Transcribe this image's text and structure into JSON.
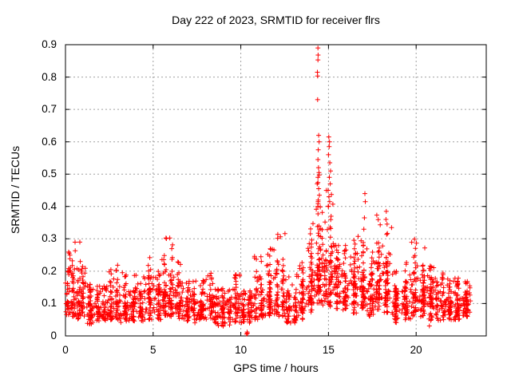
{
  "window": {
    "background": "#ffffff"
  },
  "chart_data": {
    "type": "scatter",
    "title": "Day 222 of 2023, SRMTID for receiver flrs",
    "xlabel": "GPS time / hours",
    "ylabel": "SRMTID / TECUs",
    "xlim": [
      0,
      24
    ],
    "ylim": [
      0,
      0.9
    ],
    "xticks": [
      0,
      5,
      10,
      15,
      20
    ],
    "xtick_labels": [
      "0",
      "5",
      "10",
      "15",
      "20"
    ],
    "yticks": [
      0,
      0.1,
      0.2,
      0.3,
      0.4,
      0.5,
      0.6,
      0.7,
      0.8,
      0.9
    ],
    "ytick_labels": [
      "0",
      "0.1",
      "0.2",
      "0.3",
      "0.4",
      "0.5",
      "0.6",
      "0.7",
      "0.8",
      "0.9"
    ],
    "grid": true,
    "legend": "none",
    "series_name": "SRMTID for receiver flrs",
    "marker": "plus",
    "marker_color": "#ff0000",
    "grid_color": "#a0a0a0",
    "axis_color": "#000000",
    "x_data_range": [
      0.0,
      23.1
    ],
    "seed": 20230222,
    "scatter_bands_format": [
      "x_start_hours",
      "x_end_hours",
      "n_points",
      "y_low_TECU",
      "y_typical_TECU",
      "y_peak_TECU"
    ],
    "scatter_bands": [
      [
        0.0,
        0.3,
        35,
        0.05,
        0.11,
        0.26
      ],
      [
        0.25,
        0.6,
        40,
        0.06,
        0.13,
        0.29
      ],
      [
        0.6,
        0.85,
        30,
        0.05,
        0.1,
        0.22
      ],
      [
        0.8,
        1.15,
        40,
        0.06,
        0.13,
        0.32
      ],
      [
        1.15,
        1.7,
        55,
        0.035,
        0.085,
        0.16
      ],
      [
        1.7,
        2.4,
        70,
        0.045,
        0.08,
        0.155
      ],
      [
        2.4,
        2.75,
        35,
        0.05,
        0.1,
        0.21
      ],
      [
        2.75,
        3.15,
        40,
        0.05,
        0.1,
        0.22
      ],
      [
        3.15,
        3.7,
        50,
        0.04,
        0.09,
        0.2
      ],
      [
        3.7,
        4.5,
        80,
        0.045,
        0.09,
        0.19
      ],
      [
        4.5,
        5.1,
        60,
        0.05,
        0.11,
        0.26
      ],
      [
        5.1,
        5.5,
        40,
        0.05,
        0.1,
        0.2
      ],
      [
        5.5,
        6.2,
        90,
        0.06,
        0.14,
        0.32
      ],
      [
        6.2,
        6.8,
        60,
        0.05,
        0.11,
        0.23
      ],
      [
        6.8,
        7.5,
        70,
        0.04,
        0.09,
        0.17
      ],
      [
        7.5,
        8.1,
        60,
        0.05,
        0.09,
        0.18
      ],
      [
        8.1,
        8.5,
        40,
        0.05,
        0.1,
        0.195
      ],
      [
        8.5,
        9.5,
        95,
        0.03,
        0.08,
        0.15
      ],
      [
        9.5,
        9.95,
        45,
        0.04,
        0.095,
        0.19
      ],
      [
        9.95,
        10.7,
        70,
        0.04,
        0.08,
        0.14
      ],
      [
        10.7,
        11.35,
        65,
        0.05,
        0.11,
        0.25
      ],
      [
        11.35,
        11.95,
        60,
        0.06,
        0.12,
        0.27
      ],
      [
        11.95,
        12.55,
        65,
        0.06,
        0.13,
        0.32
      ],
      [
        12.55,
        13.3,
        70,
        0.04,
        0.095,
        0.19
      ],
      [
        13.3,
        13.75,
        45,
        0.05,
        0.11,
        0.23
      ],
      [
        13.75,
        14.25,
        60,
        0.07,
        0.155,
        0.35
      ],
      [
        14.25,
        14.65,
        70,
        0.1,
        0.2,
        0.5
      ],
      [
        14.65,
        15.3,
        85,
        0.09,
        0.18,
        0.45
      ],
      [
        15.3,
        16.2,
        100,
        0.08,
        0.155,
        0.28
      ],
      [
        16.2,
        16.75,
        60,
        0.07,
        0.14,
        0.33
      ],
      [
        16.75,
        17.2,
        55,
        0.08,
        0.15,
        0.33
      ],
      [
        17.2,
        17.65,
        50,
        0.06,
        0.12,
        0.27
      ],
      [
        17.65,
        18.05,
        55,
        0.08,
        0.16,
        0.385
      ],
      [
        18.05,
        18.6,
        65,
        0.07,
        0.15,
        0.385
      ],
      [
        18.6,
        19.1,
        55,
        0.04,
        0.09,
        0.2
      ],
      [
        19.1,
        19.7,
        55,
        0.05,
        0.11,
        0.25
      ],
      [
        19.7,
        20.15,
        50,
        0.06,
        0.13,
        0.3
      ],
      [
        20.15,
        20.7,
        60,
        0.06,
        0.13,
        0.28
      ],
      [
        20.7,
        21.7,
        110,
        0.03,
        0.1,
        0.22
      ],
      [
        21.7,
        22.6,
        100,
        0.05,
        0.1,
        0.18
      ],
      [
        22.6,
        23.1,
        60,
        0.06,
        0.105,
        0.17
      ]
    ],
    "outlier_points": [
      [
        14.4,
        0.89
      ],
      [
        14.41,
        0.868
      ],
      [
        14.4,
        0.853
      ],
      [
        14.37,
        0.815
      ],
      [
        14.38,
        0.803
      ],
      [
        14.38,
        0.73
      ],
      [
        14.44,
        0.62
      ],
      [
        14.47,
        0.6
      ],
      [
        14.42,
        0.575
      ],
      [
        14.4,
        0.545
      ],
      [
        14.43,
        0.52
      ],
      [
        14.46,
        0.505
      ],
      [
        14.4,
        0.49
      ],
      [
        14.36,
        0.47
      ],
      [
        14.44,
        0.455
      ],
      [
        14.48,
        0.435
      ],
      [
        14.41,
        0.415
      ],
      [
        14.39,
        0.4
      ],
      [
        15.02,
        0.615
      ],
      [
        15.06,
        0.6
      ],
      [
        15.04,
        0.585
      ],
      [
        15.0,
        0.56
      ],
      [
        15.08,
        0.535
      ],
      [
        15.12,
        0.51
      ],
      [
        15.05,
        0.49
      ],
      [
        15.1,
        0.47
      ],
      [
        14.98,
        0.45
      ],
      [
        15.03,
        0.43
      ],
      [
        15.07,
        0.415
      ],
      [
        15.0,
        0.4
      ],
      [
        17.08,
        0.44
      ],
      [
        17.1,
        0.415
      ],
      [
        17.05,
        0.365
      ],
      [
        17.02,
        0.33
      ],
      [
        18.3,
        0.385
      ],
      [
        18.28,
        0.36
      ],
      [
        10.33,
        0.006
      ],
      [
        10.36,
        0.012
      ],
      [
        10.38,
        0.008
      ]
    ]
  }
}
